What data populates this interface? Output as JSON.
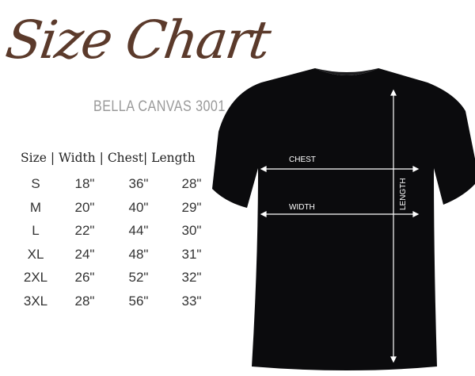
{
  "title": "Size Chart",
  "subtitle": "BELLA CANVAS 3001",
  "table": {
    "header": "Size | Width | Chest| Length",
    "rows": [
      {
        "size": "S",
        "width": "18\"",
        "chest": "36\"",
        "length": "28\""
      },
      {
        "size": "M",
        "width": "20\"",
        "chest": "40\"",
        "length": "29\""
      },
      {
        "size": "L",
        "width": "22\"",
        "chest": "44\"",
        "length": "30\""
      },
      {
        "size": "XL",
        "width": "24\"",
        "chest": "48\"",
        "length": "31\""
      },
      {
        "size": "2XL",
        "width": "26\"",
        "chest": "52\"",
        "length": "32\""
      },
      {
        "size": "3XL",
        "width": "28\"",
        "chest": "56\"",
        "length": "33\""
      }
    ]
  },
  "shirt": {
    "color": "#0b0b0d",
    "labels": {
      "chest": "CHEST",
      "width": "WIDTH",
      "length": "LENGTH"
    }
  },
  "colors": {
    "title": "#5b3a2b",
    "subtitle": "#9a9a9a"
  }
}
